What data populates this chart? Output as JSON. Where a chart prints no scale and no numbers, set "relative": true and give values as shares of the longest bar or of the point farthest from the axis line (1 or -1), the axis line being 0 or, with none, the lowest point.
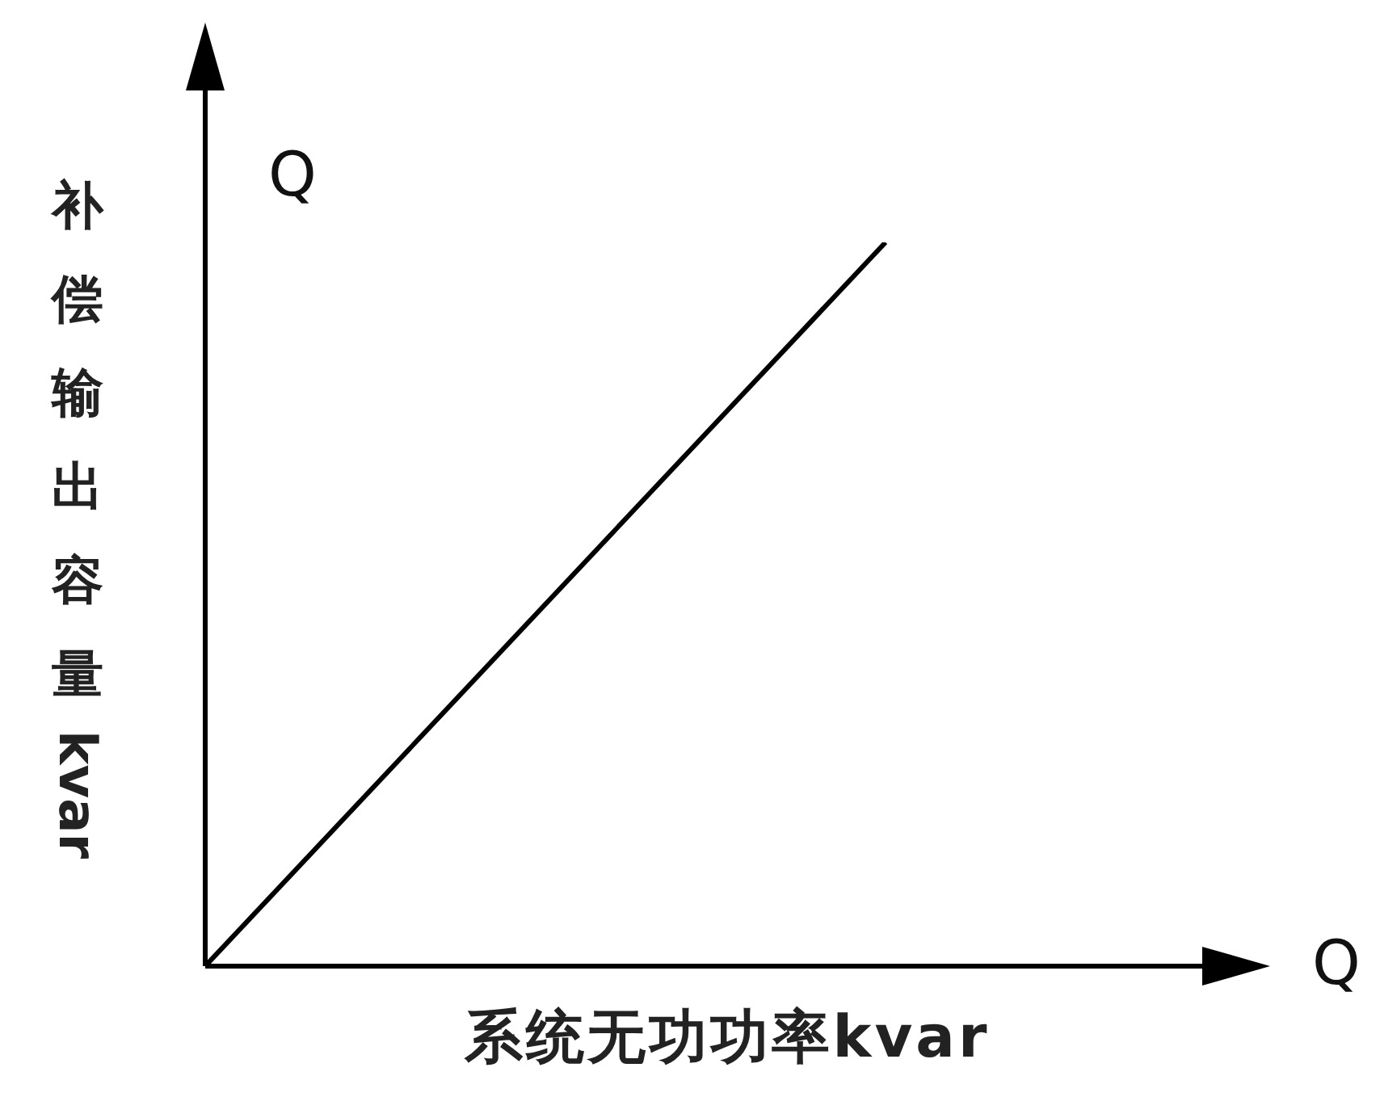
{
  "chart_data": {
    "type": "line",
    "relative": true,
    "xlabel": "系统无功功率kvar",
    "ylabel": "补偿输出容量kvar",
    "annotations": [
      "Q",
      "Q"
    ],
    "marker": "none",
    "categories": [
      null,
      null
    ],
    "series": [
      {
        "color": "#000000",
        "values": [
          0,
          1
        ]
      }
    ]
  }
}
